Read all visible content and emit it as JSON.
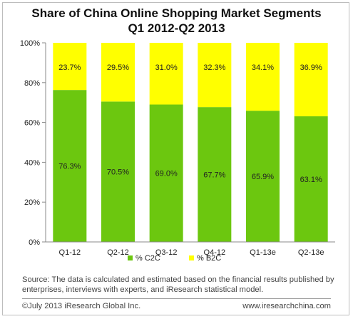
{
  "title_line1": "Share of China Online  Shopping Market Segments",
  "title_line2": "Q1 2012-Q2 2013",
  "chart_data": {
    "type": "bar",
    "stacked": true,
    "categories": [
      "Q1-12",
      "Q2-12",
      "Q3-12",
      "Q4-12",
      "Q1-13e",
      "Q2-13e"
    ],
    "series": [
      {
        "name": "% C2C",
        "values": [
          76.3,
          70.5,
          69.0,
          67.7,
          65.9,
          63.1
        ],
        "labels": [
          "76.3%",
          "70.5%",
          "69.0%",
          "67.7%",
          "65.9%",
          "63.1%"
        ],
        "color": "#6cc70f"
      },
      {
        "name": "% B2C",
        "values": [
          23.7,
          29.5,
          31.0,
          32.3,
          34.1,
          36.9
        ],
        "labels": [
          "23.7%",
          "29.5%",
          "31.0%",
          "32.3%",
          "34.1%",
          "36.9%"
        ],
        "color": "#ffff00"
      }
    ],
    "ylim": [
      0,
      100
    ],
    "yticks": [
      "0%",
      "20%",
      "40%",
      "60%",
      "80%",
      "100%"
    ],
    "grid": false,
    "legend": "bottom"
  },
  "source_note": "Source: The data is calculated and estimated based on the financial results published by enterprises, interviews with experts, and iResearch statistical model.",
  "footer_left": "©July 2013 iResearch Global Inc.",
  "footer_right": "www.iresearchchina.com"
}
